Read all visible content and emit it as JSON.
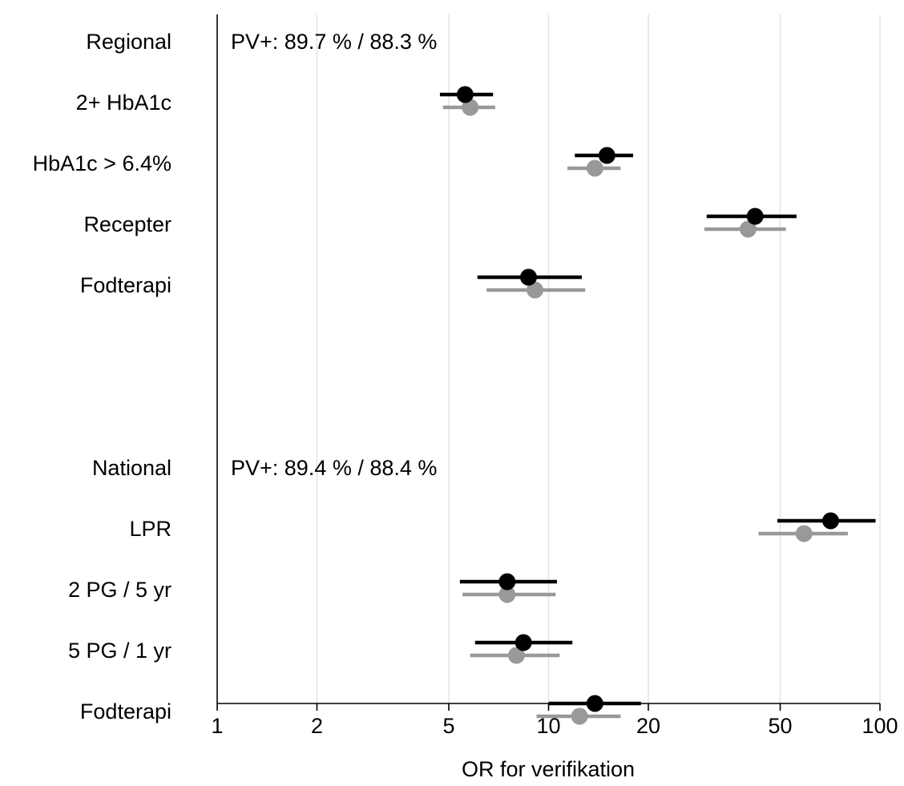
{
  "chart_data": {
    "type": "forest",
    "xlabel": "OR for verifikation",
    "x_scale": "log",
    "xlim": [
      1,
      100
    ],
    "x_ticks": [
      1,
      2,
      5,
      10,
      20,
      50,
      100
    ],
    "x_tick_labels": [
      "1",
      "2",
      "5",
      "10",
      "20",
      "50",
      "100"
    ],
    "grid": "vertical",
    "series_colors": [
      "#000000",
      "#999999"
    ],
    "groups": [
      {
        "label": "Regional",
        "annotation": "PV+: 89.7 % / 88.3 %",
        "rows": [
          {
            "label": "2+ HbA1c",
            "estimates": [
              {
                "or": 5.6,
                "lo": 4.7,
                "hi": 6.8
              },
              {
                "or": 5.8,
                "lo": 4.8,
                "hi": 6.9
              }
            ]
          },
          {
            "label": "HbA1c > 6.4%",
            "estimates": [
              {
                "or": 15.0,
                "lo": 12.0,
                "hi": 18.0
              },
              {
                "or": 13.8,
                "lo": 11.4,
                "hi": 16.5
              }
            ]
          },
          {
            "label": "Recepter",
            "estimates": [
              {
                "or": 42.0,
                "lo": 30.0,
                "hi": 56.0
              },
              {
                "or": 40.0,
                "lo": 29.5,
                "hi": 52.0
              }
            ]
          },
          {
            "label": "Fodterapi",
            "estimates": [
              {
                "or": 8.7,
                "lo": 6.1,
                "hi": 12.6
              },
              {
                "or": 9.1,
                "lo": 6.5,
                "hi": 12.9
              }
            ]
          }
        ]
      },
      {
        "label": "National",
        "annotation": "PV+: 89.4 % / 88.4 %",
        "rows": [
          {
            "label": "LPR",
            "estimates": [
              {
                "or": 71.0,
                "lo": 49.0,
                "hi": 97.0
              },
              {
                "or": 59.0,
                "lo": 43.0,
                "hi": 80.0
              }
            ]
          },
          {
            "label": "2 PG / 5 yr",
            "estimates": [
              {
                "or": 7.5,
                "lo": 5.4,
                "hi": 10.6
              },
              {
                "or": 7.5,
                "lo": 5.5,
                "hi": 10.5
              }
            ]
          },
          {
            "label": "5 PG / 1 yr",
            "estimates": [
              {
                "or": 8.4,
                "lo": 6.0,
                "hi": 11.8
              },
              {
                "or": 8.0,
                "lo": 5.8,
                "hi": 10.8
              }
            ]
          },
          {
            "label": "Fodterapi",
            "estimates": [
              {
                "or": 13.8,
                "lo": 10.0,
                "hi": 19.0
              },
              {
                "or": 12.4,
                "lo": 9.2,
                "hi": 16.5
              }
            ]
          }
        ]
      }
    ]
  }
}
